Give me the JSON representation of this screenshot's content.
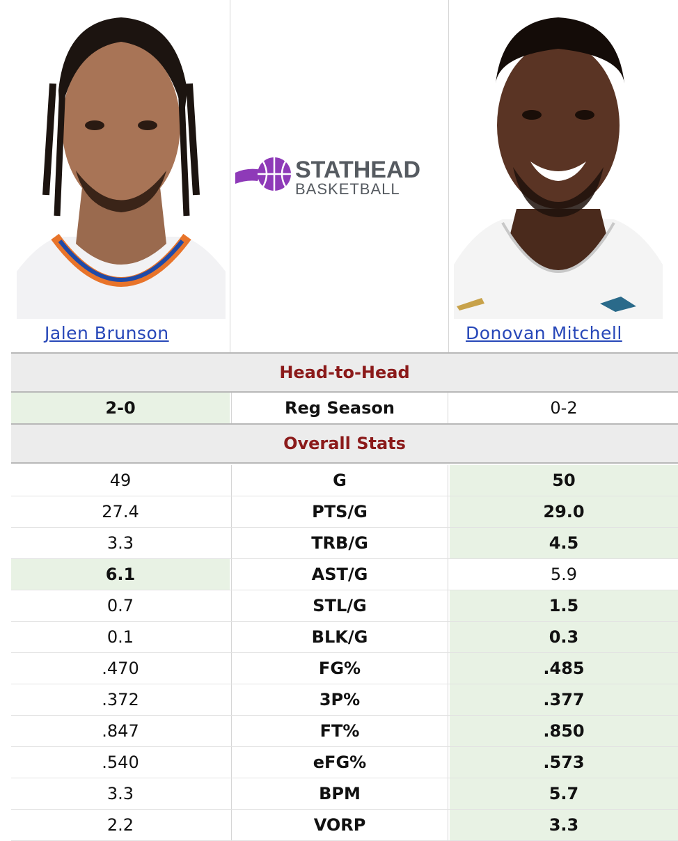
{
  "players": {
    "left": {
      "name": "Jalen Brunson"
    },
    "right": {
      "name": "Donovan Mitchell"
    }
  },
  "logo": {
    "line1": "STATHEAD",
    "line2": "BASKETBALL",
    "accent": "#8e3ab8"
  },
  "sections": {
    "head_to_head": "Head-to-Head",
    "overall": "Overall Stats"
  },
  "head_to_head_row": {
    "left": "2-0",
    "label": "Reg Season",
    "right": "0-2",
    "winner": "left"
  },
  "stats": [
    {
      "label": "G",
      "left": "49",
      "right": "50",
      "winner": "right"
    },
    {
      "label": "PTS/G",
      "left": "27.4",
      "right": "29.0",
      "winner": "right"
    },
    {
      "label": "TRB/G",
      "left": "3.3",
      "right": "4.5",
      "winner": "right"
    },
    {
      "label": "AST/G",
      "left": "6.1",
      "right": "5.9",
      "winner": "left"
    },
    {
      "label": "STL/G",
      "left": "0.7",
      "right": "1.5",
      "winner": "right"
    },
    {
      "label": "BLK/G",
      "left": "0.1",
      "right": "0.3",
      "winner": "right"
    },
    {
      "label": "FG%",
      "left": ".470",
      "right": ".485",
      "winner": "right"
    },
    {
      "label": "3P%",
      "left": ".372",
      "right": ".377",
      "winner": "right"
    },
    {
      "label": "FT%",
      "left": ".847",
      "right": ".850",
      "winner": "right"
    },
    {
      "label": "eFG%",
      "left": ".540",
      "right": ".573",
      "winner": "right"
    },
    {
      "label": "BPM",
      "left": "3.3",
      "right": "5.7",
      "winner": "right"
    },
    {
      "label": "VORP",
      "left": "2.2",
      "right": "3.3",
      "winner": "right"
    }
  ],
  "colors": {
    "win_bg": "#e8f2e4",
    "section_text": "#8b1a1a",
    "link": "#2747b8"
  }
}
